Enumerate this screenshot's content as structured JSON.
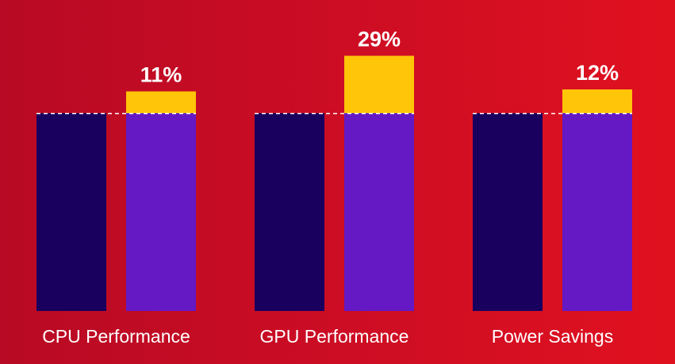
{
  "chart_data": {
    "type": "bar",
    "categories": [
      "CPU Performance",
      "GPU Performance",
      "Power Savings"
    ],
    "baseline_value": 100,
    "improvement_values": [
      111,
      129,
      112
    ],
    "improvement_labels": [
      "11%",
      "29%",
      "12%"
    ],
    "ylim": [
      0,
      135
    ],
    "grid": false,
    "legend": "none",
    "colors": {
      "baseline_bar": "#1a005e",
      "improved_bar": "#6419c4",
      "gain": "#ffc508",
      "dashed_line": "#ffffff",
      "text": "#ffffff"
    }
  }
}
